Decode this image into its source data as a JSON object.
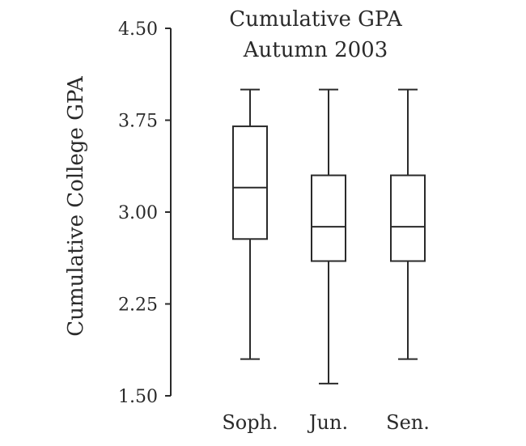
{
  "chart_data": {
    "type": "boxplot",
    "title": "Cumulative GPA",
    "subtitle": "Autumn 2003",
    "xlabel": "",
    "ylabel": "Cumulative College GPA",
    "ylim": [
      1.5,
      4.5
    ],
    "yticks": [
      "4.50",
      "3.75",
      "3.00",
      "2.25",
      "1.50"
    ],
    "grid": false,
    "categories": [
      "Soph.",
      "Jun.",
      "Sen."
    ],
    "boxes": [
      {
        "min": 1.8,
        "q1": 2.78,
        "median": 3.2,
        "q3": 3.7,
        "max": 4.0
      },
      {
        "min": 1.6,
        "q1": 2.6,
        "median": 2.88,
        "q3": 3.3,
        "max": 4.0
      },
      {
        "min": 1.8,
        "q1": 2.6,
        "median": 2.88,
        "q3": 3.3,
        "max": 4.0
      }
    ]
  }
}
